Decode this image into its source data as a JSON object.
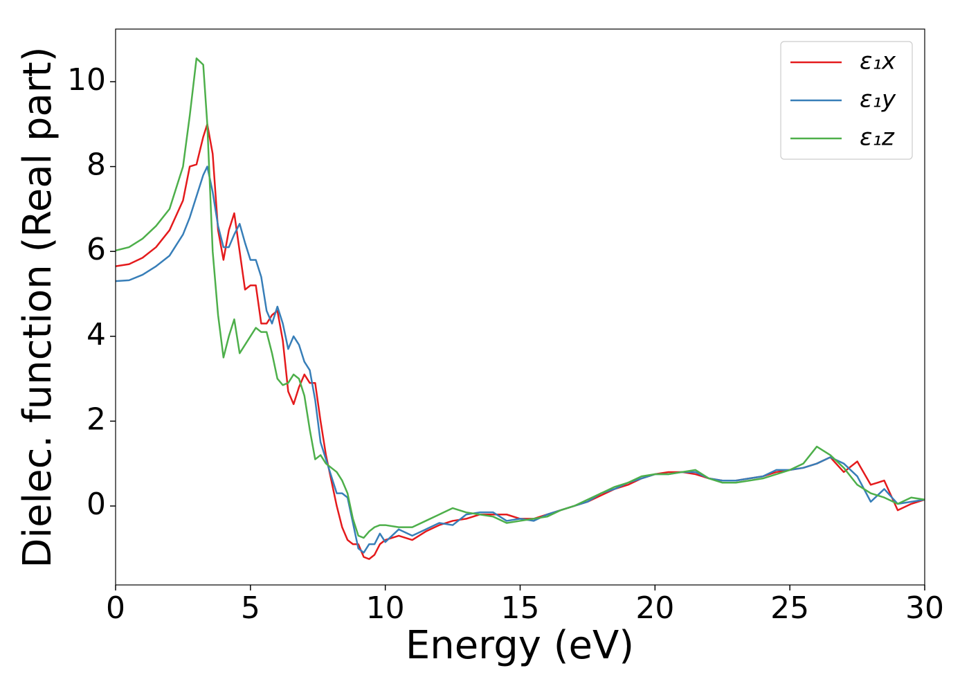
{
  "chart_data": {
    "type": "line",
    "xlabel": "Energy (eV)",
    "ylabel": "Dielec. function (Real part)",
    "xlim": [
      0,
      30
    ],
    "ylim": [
      -1.86,
      11.24
    ],
    "xticks": [
      0,
      5,
      10,
      15,
      20,
      25,
      30
    ],
    "yticks": [
      0,
      2,
      4,
      6,
      8,
      10
    ],
    "grid": false,
    "legend": "upper right",
    "x": [
      0,
      0.5,
      1,
      1.5,
      2,
      2.5,
      2.75,
      3,
      3.25,
      3.4,
      3.6,
      3.8,
      4,
      4.2,
      4.4,
      4.6,
      4.8,
      5,
      5.2,
      5.4,
      5.6,
      5.8,
      6,
      6.2,
      6.4,
      6.6,
      6.8,
      7,
      7.2,
      7.4,
      7.6,
      7.8,
      8,
      8.2,
      8.4,
      8.6,
      8.8,
      9,
      9.2,
      9.4,
      9.6,
      9.8,
      10,
      10.5,
      11,
      11.5,
      12,
      12.5,
      13,
      13.5,
      14,
      14.5,
      15,
      15.5,
      16,
      16.5,
      17,
      17.5,
      18,
      18.5,
      19,
      19.5,
      20,
      20.5,
      21,
      21.5,
      22,
      22.5,
      23,
      23.5,
      24,
      24.5,
      25,
      25.5,
      26,
      26.5,
      27,
      27.5,
      28,
      28.5,
      29,
      29.5,
      30
    ],
    "series": [
      {
        "name": "ε₁x",
        "color": "#e41a1c",
        "values": [
          5.65,
          5.7,
          5.85,
          6.1,
          6.5,
          7.2,
          8.0,
          8.05,
          8.7,
          9.0,
          8.3,
          6.5,
          5.8,
          6.5,
          6.9,
          6.0,
          5.1,
          5.2,
          5.2,
          4.3,
          4.3,
          4.5,
          4.6,
          3.9,
          2.7,
          2.4,
          2.8,
          3.1,
          2.9,
          2.9,
          2.0,
          1.2,
          0.6,
          0.0,
          -0.5,
          -0.8,
          -0.9,
          -0.9,
          -1.2,
          -1.25,
          -1.15,
          -0.9,
          -0.8,
          -0.7,
          -0.8,
          -0.6,
          -0.45,
          -0.35,
          -0.3,
          -0.2,
          -0.2,
          -0.2,
          -0.3,
          -0.3,
          -0.2,
          -0.1,
          0.0,
          0.1,
          0.25,
          0.4,
          0.5,
          0.65,
          0.75,
          0.8,
          0.8,
          0.75,
          0.65,
          0.6,
          0.6,
          0.65,
          0.7,
          0.8,
          0.85,
          0.9,
          1.0,
          1.15,
          0.8,
          1.05,
          0.5,
          0.6,
          -0.1,
          0.05,
          0.15
        ]
      },
      {
        "name": "ε₁y",
        "color": "#377eb8",
        "values": [
          5.3,
          5.32,
          5.45,
          5.65,
          5.9,
          6.4,
          6.8,
          7.3,
          7.8,
          8.0,
          7.4,
          6.6,
          6.1,
          6.1,
          6.4,
          6.65,
          6.2,
          5.8,
          5.8,
          5.4,
          4.6,
          4.3,
          4.7,
          4.3,
          3.7,
          4.0,
          3.8,
          3.4,
          3.2,
          2.5,
          1.5,
          1.1,
          0.7,
          0.3,
          0.3,
          0.2,
          -0.4,
          -1.0,
          -1.1,
          -0.9,
          -0.9,
          -0.65,
          -0.85,
          -0.55,
          -0.7,
          -0.55,
          -0.4,
          -0.45,
          -0.2,
          -0.15,
          -0.15,
          -0.35,
          -0.3,
          -0.35,
          -0.2,
          -0.1,
          0.0,
          0.1,
          0.3,
          0.4,
          0.55,
          0.65,
          0.75,
          0.75,
          0.8,
          0.8,
          0.65,
          0.6,
          0.6,
          0.65,
          0.7,
          0.85,
          0.85,
          0.9,
          1.0,
          1.15,
          1.0,
          0.7,
          0.1,
          0.4,
          0.05,
          0.1,
          0.15
        ]
      },
      {
        "name": "ε₁z",
        "color": "#4daf4a",
        "values": [
          6.02,
          6.1,
          6.3,
          6.6,
          7.0,
          8.0,
          9.2,
          10.55,
          10.4,
          9.0,
          6.0,
          4.5,
          3.5,
          4.0,
          4.4,
          3.6,
          3.8,
          4.0,
          4.2,
          4.1,
          4.1,
          3.6,
          3.0,
          2.85,
          2.9,
          3.1,
          3.0,
          2.6,
          1.8,
          1.1,
          1.2,
          1.0,
          0.9,
          0.8,
          0.6,
          0.3,
          -0.3,
          -0.7,
          -0.75,
          -0.6,
          -0.5,
          -0.45,
          -0.45,
          -0.5,
          -0.5,
          -0.35,
          -0.2,
          -0.05,
          -0.15,
          -0.2,
          -0.25,
          -0.4,
          -0.35,
          -0.3,
          -0.25,
          -0.1,
          0.0,
          0.15,
          0.3,
          0.45,
          0.55,
          0.7,
          0.75,
          0.75,
          0.8,
          0.85,
          0.65,
          0.55,
          0.55,
          0.6,
          0.65,
          0.75,
          0.85,
          1.0,
          1.4,
          1.2,
          0.9,
          0.5,
          0.3,
          0.2,
          0.05,
          0.2,
          0.15
        ]
      }
    ]
  }
}
